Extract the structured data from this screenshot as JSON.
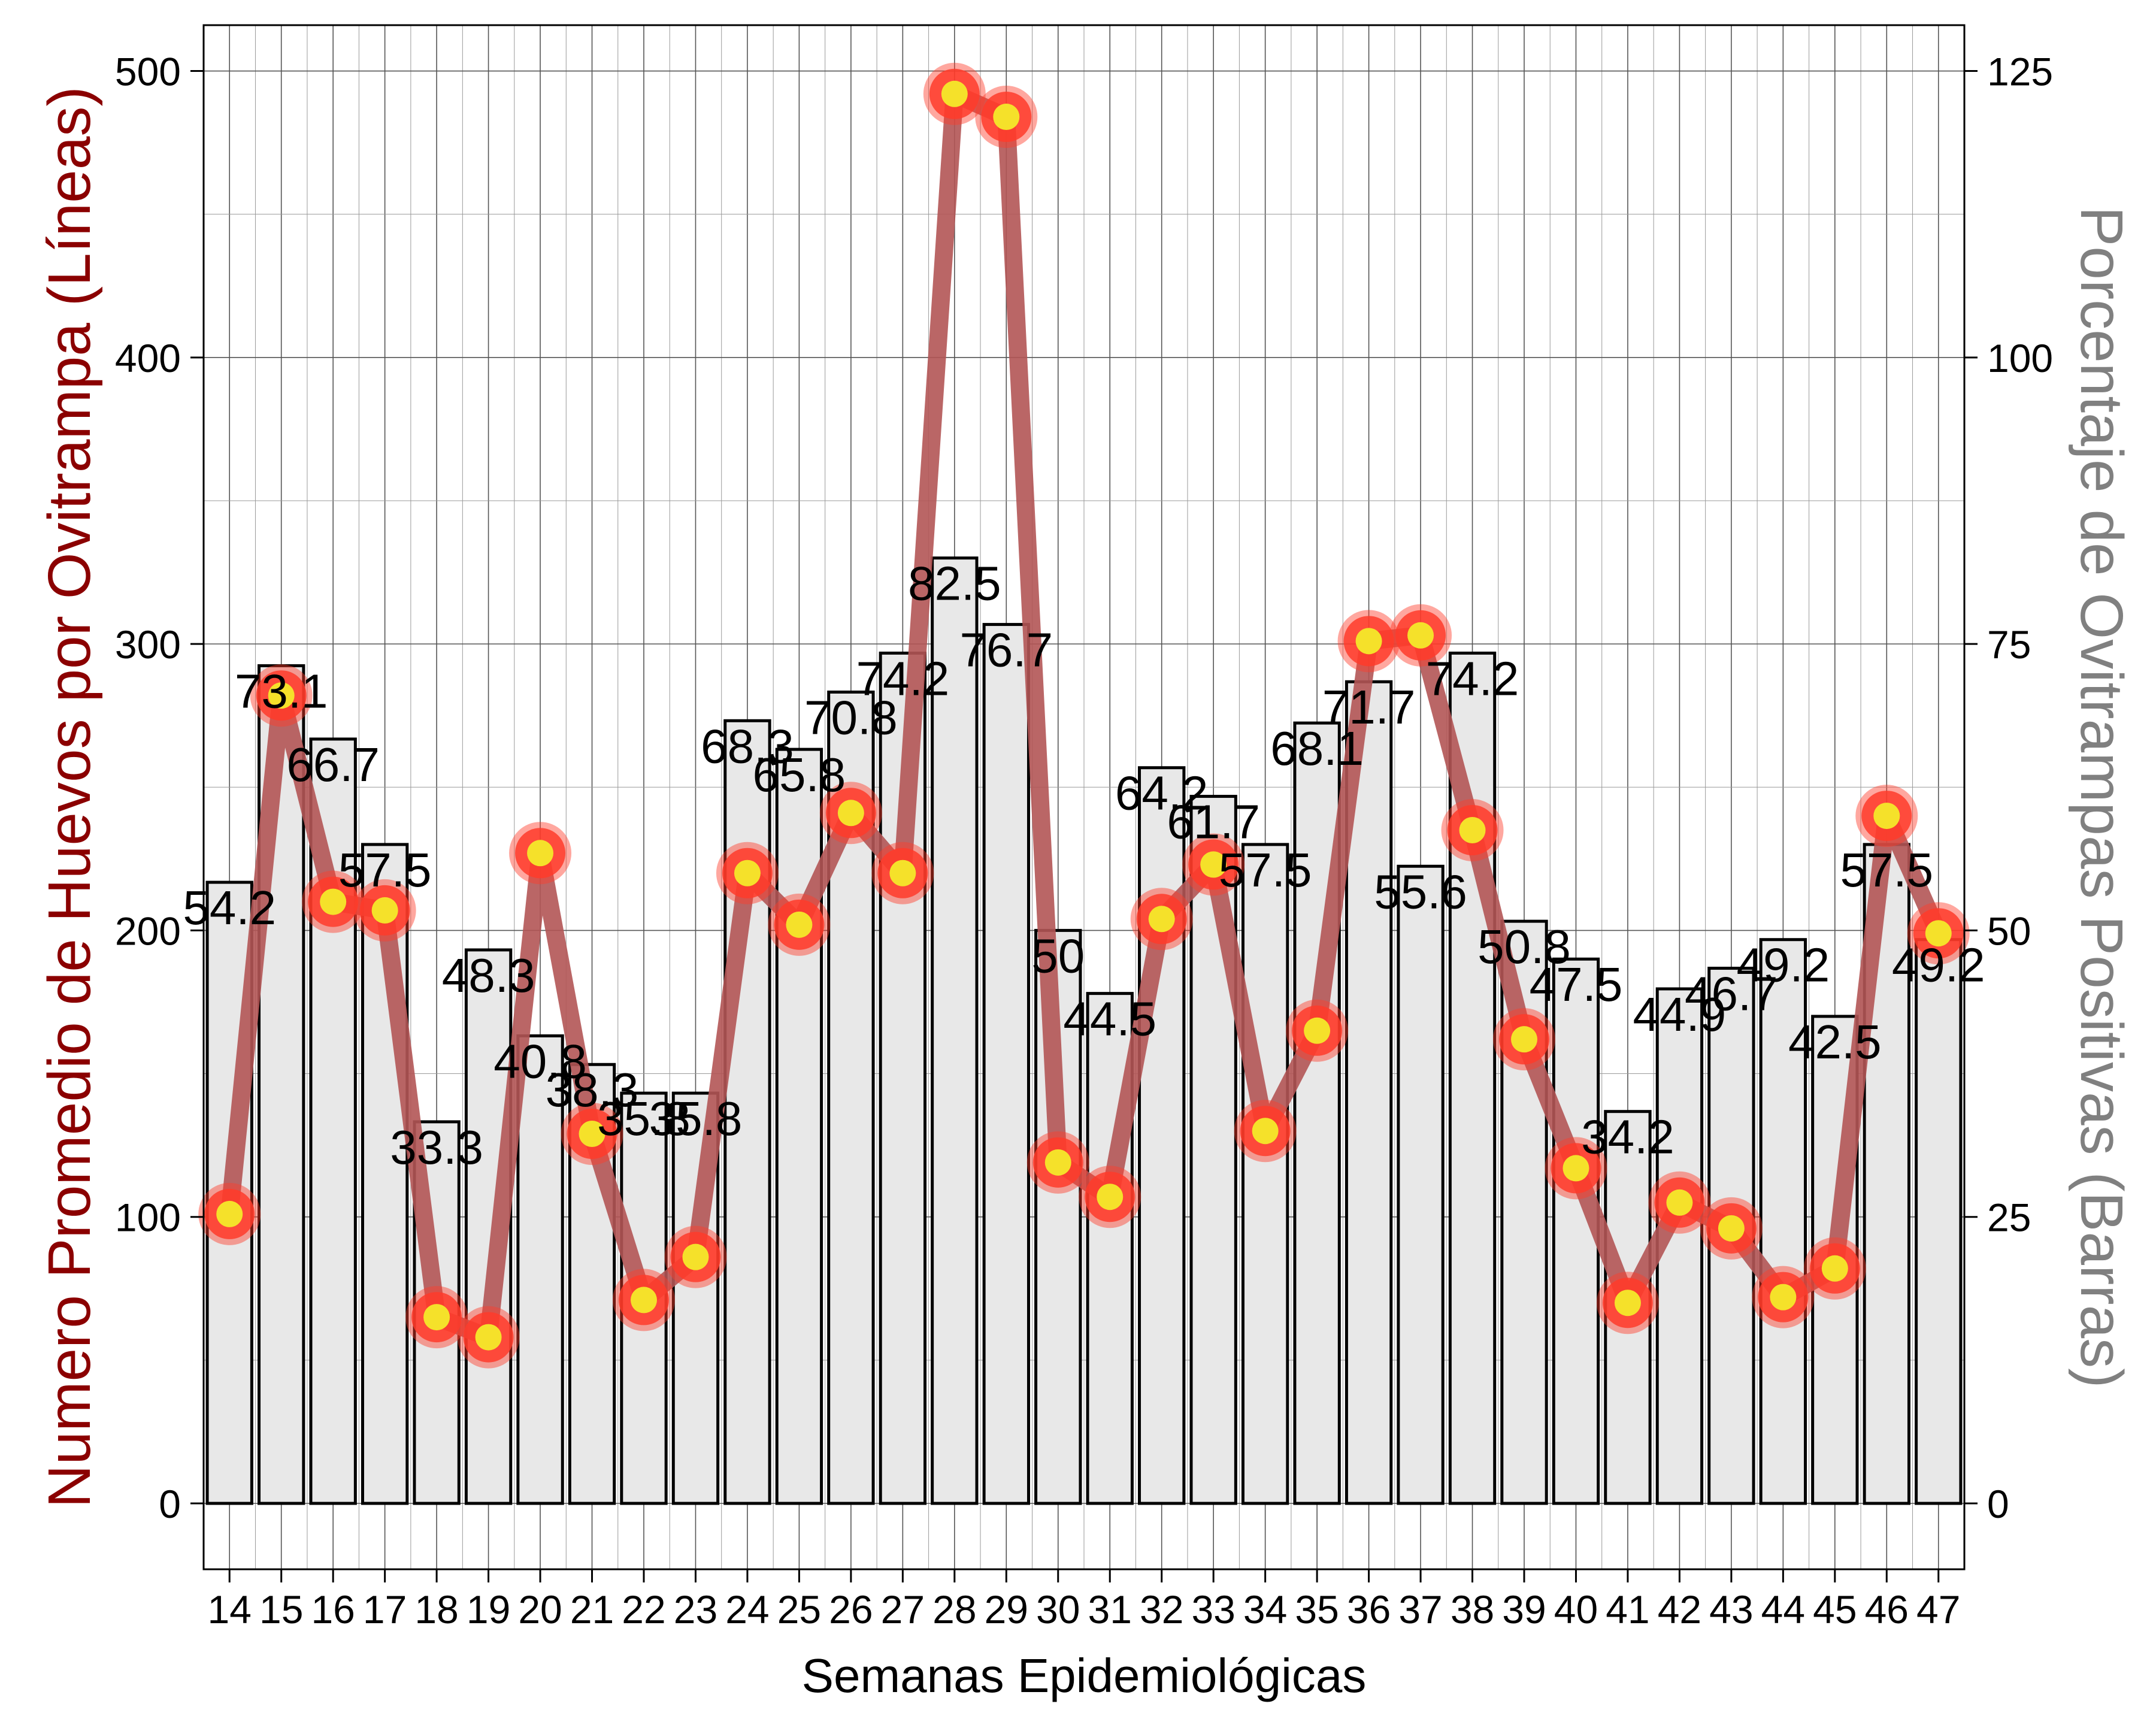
{
  "chart_data": {
    "type": "bar+line",
    "categories": [
      "14",
      "15",
      "16",
      "17",
      "18",
      "19",
      "20",
      "21",
      "22",
      "23",
      "24",
      "25",
      "26",
      "27",
      "28",
      "29",
      "30",
      "31",
      "32",
      "33",
      "34",
      "35",
      "36",
      "37",
      "38",
      "39",
      "40",
      "41",
      "42",
      "43",
      "44",
      "45",
      "46",
      "47"
    ],
    "series": [
      {
        "name": "Porcentaje de Ovitrampas Positivas",
        "type": "bar",
        "axis": "right",
        "values": [
          54.2,
          73.1,
          66.7,
          57.5,
          33.3,
          48.3,
          40.8,
          38.3,
          35.8,
          35.8,
          68.3,
          65.8,
          70.8,
          74.2,
          82.5,
          76.7,
          50,
          44.5,
          64.2,
          61.7,
          57.5,
          68.1,
          71.7,
          55.6,
          74.2,
          50.8,
          47.5,
          34.2,
          44.9,
          46.7,
          49.2,
          42.5,
          57.5,
          49.2
        ],
        "labels": [
          "54.2",
          "73.1",
          "66.7",
          "57.5",
          "33.3",
          "48.3",
          "40.8",
          "38.3",
          "35.8",
          "35.8",
          "68.3",
          "65.8",
          "70.8",
          "74.2",
          "82.5",
          "76.7",
          "50",
          "44.5",
          "64.2",
          "61.7",
          "57.5",
          "68.1",
          "71.7",
          "55.6",
          "74.2",
          "50.8",
          "47.5",
          "34.2",
          "44.9",
          "46.7",
          "49.2",
          "42.5",
          "57.5",
          "49.2"
        ]
      },
      {
        "name": "Numero Promedio de Huevos por Ovitrampa",
        "type": "line",
        "axis": "left",
        "values": [
          101,
          282,
          210,
          207,
          65,
          58,
          227,
          129,
          71,
          86,
          220,
          202,
          241,
          220,
          492,
          484,
          119,
          107,
          204,
          223,
          130,
          165,
          301,
          303,
          235,
          162,
          117,
          70,
          105,
          96,
          72,
          82,
          240,
          199
        ]
      }
    ],
    "xlabel": "Semanas Epidemiológicas",
    "ylabel": "Numero Promedio de Huevos por Ovitrampa (Líneas)",
    "y2label": "Porcentaje de Ovitrampas Positivas (Barras)",
    "ylim": [
      -23,
      516
    ],
    "y2lim": [
      -5.75,
      129
    ],
    "yticks": [
      "0",
      "100",
      "200",
      "300",
      "400",
      "500"
    ],
    "y2ticks": [
      "0",
      "25",
      "50",
      "75",
      "100",
      "125"
    ],
    "grid": true,
    "colors": {
      "bar_fill": "#e8e8e8",
      "bar_stroke": "#000000",
      "line": "#b35555",
      "marker_outer": "#ff3b2a",
      "marker_inner": "#f5e12a",
      "ylabel": "#8b0000",
      "y2label": "#808080"
    }
  }
}
